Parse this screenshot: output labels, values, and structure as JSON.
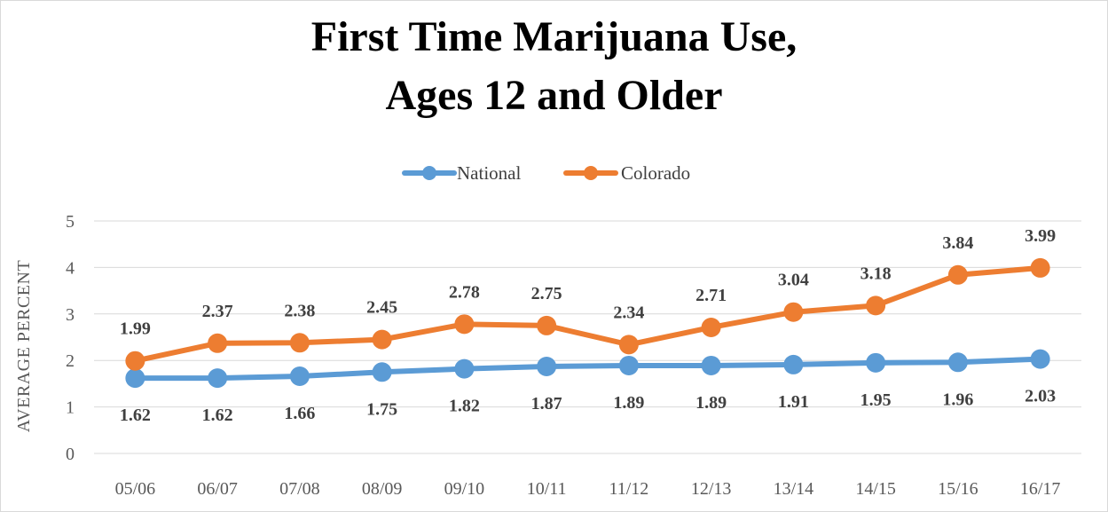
{
  "chart_data": {
    "type": "line",
    "title_lines": [
      "First Time Marijuana Use,",
      "Ages 12 and Older"
    ],
    "xlabel": "",
    "ylabel": "AVERAGE PERCENT",
    "ylim": [
      0,
      5
    ],
    "yticks": [
      "0",
      "1",
      "2",
      "3",
      "4",
      "5"
    ],
    "grid": true,
    "legend": "top-center",
    "categories": [
      "05/06",
      "06/07",
      "07/08",
      "08/09",
      "09/10",
      "10/11",
      "11/12",
      "12/13",
      "13/14",
      "14/15",
      "15/16",
      "16/17"
    ],
    "series": [
      {
        "name": "National",
        "color": "#5b9bd5",
        "label_position": "below",
        "values": [
          1.62,
          1.62,
          1.66,
          1.75,
          1.82,
          1.87,
          1.89,
          1.89,
          1.91,
          1.95,
          1.96,
          2.03
        ],
        "labels": [
          "1.62",
          "1.62",
          "1.66",
          "1.75",
          "1.82",
          "1.87",
          "1.89",
          "1.89",
          "1.91",
          "1.95",
          "1.96",
          "2.03"
        ]
      },
      {
        "name": "Colorado",
        "color": "#ed7d31",
        "label_position": "above",
        "values": [
          1.99,
          2.37,
          2.38,
          2.45,
          2.78,
          2.75,
          2.34,
          2.71,
          3.04,
          3.18,
          3.84,
          3.99
        ],
        "labels": [
          "1.99",
          "2.37",
          "2.38",
          "2.45",
          "2.78",
          "2.75",
          "2.34",
          "2.71",
          "3.04",
          "3.18",
          "3.84",
          "3.99"
        ]
      }
    ]
  }
}
